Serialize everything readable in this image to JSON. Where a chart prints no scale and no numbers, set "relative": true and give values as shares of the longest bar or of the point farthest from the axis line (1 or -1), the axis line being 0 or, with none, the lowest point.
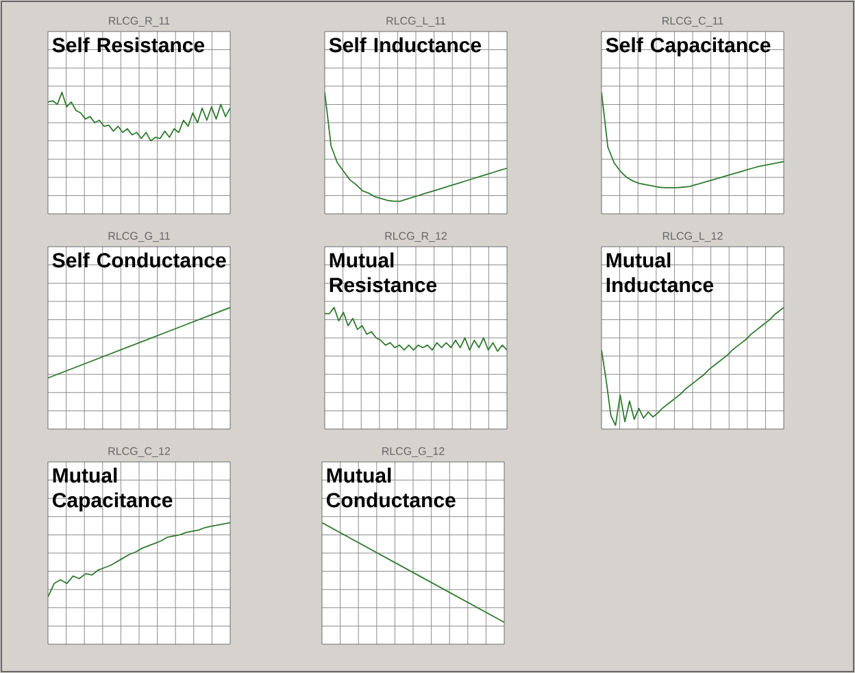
{
  "chart_data": [
    {
      "type": "line",
      "title": "RLCG_R_11",
      "annotations": [
        "Self Resistance"
      ],
      "relative": true,
      "grid": true,
      "color": "#2f7a2f",
      "categories": [
        null,
        null,
        null,
        null,
        null,
        null,
        null,
        null,
        null,
        null,
        null,
        null,
        null,
        null,
        null,
        null,
        null,
        null,
        null,
        null,
        null,
        null,
        null,
        null,
        null,
        null,
        null,
        null,
        null,
        null,
        null,
        null,
        null,
        null,
        null,
        null,
        null,
        null,
        null,
        null
      ],
      "values": [
        0.92,
        0.93,
        0.9,
        1,
        0.88,
        0.92,
        0.85,
        0.83,
        0.78,
        0.8,
        0.75,
        0.77,
        0.72,
        0.73,
        0.68,
        0.72,
        0.67,
        0.7,
        0.65,
        0.67,
        0.62,
        0.67,
        0.6,
        0.63,
        0.62,
        0.68,
        0.63,
        0.7,
        0.67,
        0.77,
        0.72,
        0.83,
        0.75,
        0.87,
        0.77,
        0.88,
        0.78,
        0.9,
        0.8,
        0.87
      ]
    },
    {
      "type": "line",
      "title": "RLCG_L_11",
      "annotations": [
        "Self Inductance"
      ],
      "relative": true,
      "grid": true,
      "color": "#2f7a2f",
      "categories": [
        null,
        null,
        null,
        null,
        null,
        null,
        null,
        null,
        null,
        null,
        null,
        null,
        null,
        null,
        null,
        null,
        null,
        null,
        null,
        null,
        null,
        null,
        null,
        null,
        null,
        null,
        null,
        null,
        null,
        null
      ],
      "values": [
        1,
        0.56,
        0.42,
        0.35,
        0.28,
        0.24,
        0.19,
        0.17,
        0.14,
        0.125,
        0.11,
        0.104,
        0.104,
        0.12,
        0.136,
        0.152,
        0.168,
        0.184,
        0.2,
        0.216,
        0.232,
        0.248,
        0.264,
        0.28,
        0.296,
        0.312,
        0.328,
        0.344,
        0.36,
        0.375
      ]
    },
    {
      "type": "line",
      "title": "RLCG_C_11",
      "annotations": [
        "Self Capacitance"
      ],
      "relative": true,
      "grid": true,
      "color": "#2f7a2f",
      "categories": [
        null,
        null,
        null,
        null,
        null,
        null,
        null,
        null,
        null,
        null,
        null,
        null,
        null,
        null,
        null,
        null,
        null,
        null,
        null,
        null,
        null,
        null,
        null,
        null,
        null,
        null,
        null,
        null,
        null,
        null
      ],
      "values": [
        1,
        0.55,
        0.42,
        0.35,
        0.3,
        0.27,
        0.25,
        0.24,
        0.23,
        0.22,
        0.215,
        0.215,
        0.215,
        0.22,
        0.225,
        0.24,
        0.255,
        0.27,
        0.285,
        0.3,
        0.315,
        0.33,
        0.345,
        0.36,
        0.375,
        0.39,
        0.4,
        0.41,
        0.42,
        0.43
      ]
    },
    {
      "type": "line",
      "title": "RLCG_G_11",
      "annotations": [
        "Self Conductance"
      ],
      "relative": true,
      "grid": true,
      "color": "#2f7a2f",
      "categories": [
        null,
        null,
        null
      ],
      "values": [
        0.42,
        0.71,
        1
      ]
    },
    {
      "type": "line",
      "title": "RLCG_R_12",
      "annotations": [
        "Mutual Resistance"
      ],
      "relative": true,
      "grid": true,
      "color": "#2f7a2f",
      "categories": [
        null,
        null,
        null,
        null,
        null,
        null,
        null,
        null,
        null,
        null,
        null,
        null,
        null,
        null,
        null,
        null,
        null,
        null,
        null,
        null,
        null,
        null,
        null,
        null,
        null,
        null,
        null,
        null,
        null,
        null,
        null,
        null,
        null,
        null,
        null,
        null,
        null,
        null,
        null,
        null
      ],
      "values": [
        0.95,
        0.95,
        1,
        0.89,
        0.96,
        0.85,
        0.91,
        0.82,
        0.85,
        0.78,
        0.8,
        0.75,
        0.73,
        0.69,
        0.71,
        0.67,
        0.69,
        0.65,
        0.69,
        0.65,
        0.69,
        0.67,
        0.69,
        0.65,
        0.71,
        0.67,
        0.71,
        0.67,
        0.73,
        0.67,
        0.75,
        0.65,
        0.73,
        0.67,
        0.75,
        0.65,
        0.71,
        0.64,
        0.69,
        0.65
      ]
    },
    {
      "type": "line",
      "title": "RLCG_L_12",
      "annotations": [
        "Mutual Inductance"
      ],
      "relative": true,
      "grid": true,
      "color": "#2f7a2f",
      "categories": [
        null,
        null,
        null,
        null,
        null,
        null,
        null,
        null,
        null,
        null,
        null,
        null,
        null,
        null,
        null,
        null,
        null,
        null,
        null,
        null,
        null,
        null,
        null,
        null,
        null,
        null,
        null,
        null,
        null,
        null,
        null,
        null,
        null,
        null,
        null,
        null,
        null,
        null,
        null,
        null
      ],
      "values": [
        0.65,
        0.4,
        0.11,
        0.03,
        0.28,
        0.06,
        0.23,
        0.08,
        0.17,
        0.09,
        0.14,
        0.1,
        0.13,
        0.17,
        0.2,
        0.23,
        0.26,
        0.29,
        0.33,
        0.36,
        0.39,
        0.42,
        0.45,
        0.49,
        0.52,
        0.55,
        0.58,
        0.61,
        0.65,
        0.68,
        0.71,
        0.74,
        0.78,
        0.81,
        0.84,
        0.87,
        0.9,
        0.94,
        0.97,
        1
      ]
    },
    {
      "type": "line",
      "title": "RLCG_C_12",
      "annotations": [
        "Mutual Capacitance"
      ],
      "relative": true,
      "grid": true,
      "color": "#2f7a2f",
      "categories": [
        null,
        null,
        null,
        null,
        null,
        null,
        null,
        null,
        null,
        null,
        null,
        null,
        null,
        null,
        null,
        null,
        null,
        null,
        null,
        null,
        null,
        null,
        null,
        null,
        null,
        null,
        null,
        null,
        null,
        null
      ],
      "values": [
        0.39,
        0.5,
        0.53,
        0.5,
        0.56,
        0.54,
        0.58,
        0.57,
        0.61,
        0.63,
        0.65,
        0.68,
        0.71,
        0.74,
        0.76,
        0.79,
        0.81,
        0.83,
        0.85,
        0.88,
        0.89,
        0.9,
        0.92,
        0.93,
        0.94,
        0.96,
        0.97,
        0.98,
        0.99,
        1
      ]
    },
    {
      "type": "line",
      "title": "RLCG_G_12",
      "annotations": [
        "Mutual Conductance"
      ],
      "relative": true,
      "grid": true,
      "color": "#2f7a2f",
      "categories": [
        null,
        null,
        null
      ],
      "values": [
        1,
        0.59,
        0.18
      ]
    }
  ]
}
